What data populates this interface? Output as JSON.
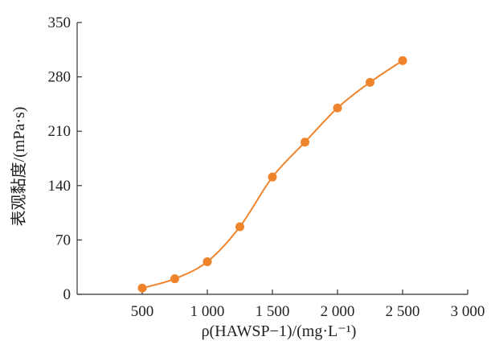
{
  "chart_data": {
    "type": "line",
    "title": "",
    "xlabel": "ρ(HAWSP−1)/(mg·L⁻¹)",
    "ylabel": "表观黏度/(mPa·s)",
    "xlim": [
      0,
      3000
    ],
    "ylim": [
      0,
      350
    ],
    "xticks": [
      500,
      1000,
      1500,
      2000,
      2500,
      3000
    ],
    "xtick_labels": [
      "500",
      "1 000",
      "1 500",
      "2 000",
      "2 500",
      "3 000"
    ],
    "yticks": [
      0,
      70,
      140,
      210,
      280,
      350
    ],
    "ytick_labels": [
      "0",
      "70",
      "140",
      "210",
      "280",
      "350"
    ],
    "grid": false,
    "series": [
      {
        "color": "#F0842C",
        "smooth": true,
        "marker": "circle",
        "x": [
          500,
          750,
          1000,
          1250,
          1500,
          1750,
          2000,
          2250,
          2500
        ],
        "y": [
          8,
          20,
          42,
          87,
          151,
          196,
          240,
          273,
          301
        ]
      }
    ]
  }
}
